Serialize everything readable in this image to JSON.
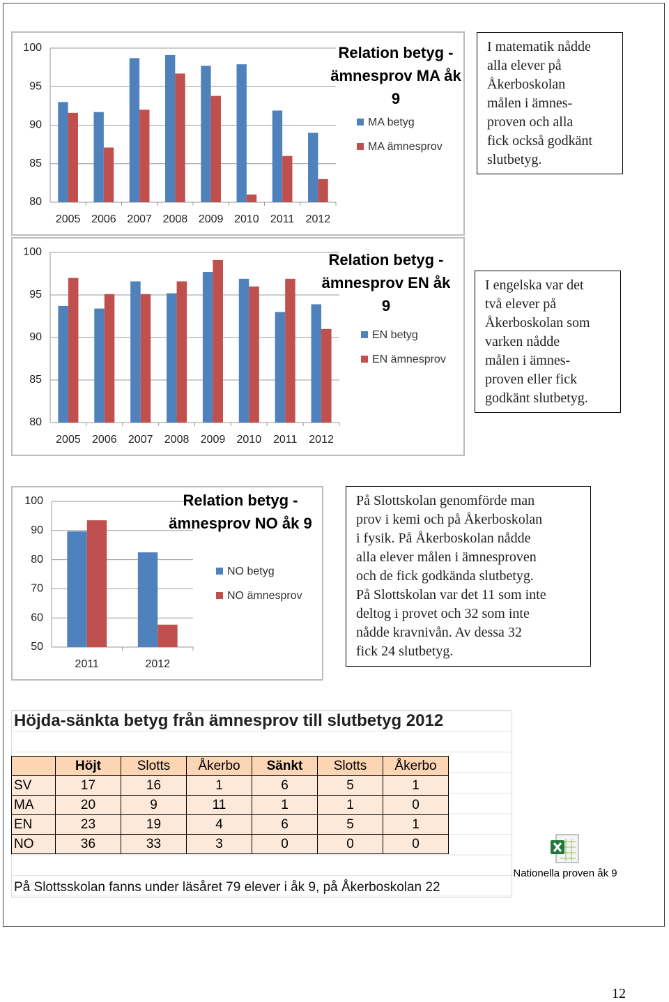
{
  "chart_data": [
    {
      "type": "bar",
      "title": "Relation betyg - ämnesprov MA åk 9",
      "categories": [
        "2005",
        "2006",
        "2007",
        "2008",
        "2009",
        "2010",
        "2011",
        "2012"
      ],
      "series": [
        {
          "name": "MA betyg",
          "color": "#4f81bd",
          "values": [
            93.0,
            91.7,
            98.7,
            99.1,
            97.7,
            97.9,
            91.9,
            89.0
          ]
        },
        {
          "name": "MA ämnesprov",
          "color": "#c0504d",
          "values": [
            91.6,
            87.1,
            92.0,
            96.7,
            93.8,
            81.0,
            86.0,
            83.0
          ]
        }
      ],
      "ylim": [
        80,
        100
      ],
      "yticks": [
        80,
        85,
        90,
        95,
        100
      ],
      "grid": true
    },
    {
      "type": "bar",
      "title": "Relation betyg - ämnesprov EN åk 9",
      "categories": [
        "2005",
        "2006",
        "2007",
        "2008",
        "2009",
        "2010",
        "2011",
        "2012"
      ],
      "series": [
        {
          "name": "EN betyg",
          "color": "#4f81bd",
          "values": [
            93.7,
            93.4,
            96.6,
            95.2,
            97.7,
            96.9,
            93.0,
            93.9
          ]
        },
        {
          "name": "EN ämnesprov",
          "color": "#c0504d",
          "values": [
            97.0,
            95.1,
            95.1,
            96.6,
            99.1,
            96.0,
            96.9,
            91.0
          ]
        }
      ],
      "ylim": [
        80,
        100
      ],
      "yticks": [
        80,
        85,
        90,
        95,
        100
      ],
      "grid": true
    },
    {
      "type": "bar",
      "title": "Relation betyg - ämnesprov NO åk 9",
      "categories": [
        "2011",
        "2012"
      ],
      "series": [
        {
          "name": "NO betyg",
          "color": "#4f81bd",
          "values": [
            89.7,
            82.5
          ]
        },
        {
          "name": "NO ämnesprov",
          "color": "#c0504d",
          "values": [
            93.5,
            57.7
          ]
        }
      ],
      "ylim": [
        50,
        100
      ],
      "yticks": [
        50,
        60,
        70,
        80,
        90,
        100
      ],
      "grid": true
    }
  ],
  "notes": [
    [
      "I matematik nådde",
      "alla elever på",
      "Åkerboskolan",
      "målen i ämnes-",
      "proven och alla",
      "fick också godkänt",
      "slutbetyg."
    ],
    [
      "I engelska var det",
      "två elever på",
      "Åkerboskolan som",
      "varken nådde",
      "målen i ämnes-",
      "proven eller fick",
      "godkänt slutbetyg."
    ],
    [
      "På Slottskolan genomförde man",
      "prov i kemi och på Åkerboskolan",
      "i fysik. På Åkerboskolan nådde",
      "alla elever målen i ämnesproven",
      "och de fick godkända slutbetyg.",
      "På Slottskolan var det 11 som inte",
      "deltog i provet och 32 som inte",
      "nådde kravnivån. Av dessa 32",
      "fick 24 slutbetyg."
    ]
  ],
  "table": {
    "title": "Höjda-sänkta betyg från ämnesprov till slutbetyg 2012",
    "header": [
      "Höjt",
      "Slotts",
      "Åkerbo",
      "Sänkt",
      "Slotts",
      "Åkerbo"
    ],
    "rows": [
      {
        "label": "SV",
        "values": [
          17,
          16,
          1,
          6,
          5,
          1
        ]
      },
      {
        "label": "MA",
        "values": [
          20,
          9,
          11,
          1,
          1,
          0
        ]
      },
      {
        "label": "EN",
        "values": [
          23,
          19,
          4,
          6,
          5,
          1
        ]
      },
      {
        "label": "NO",
        "values": [
          36,
          33,
          3,
          0,
          0,
          0
        ]
      }
    ],
    "footnote": "På Slottsskolan fanns under läsåret 79 elever i åk 9, på Åkerboskolan 22"
  },
  "attachment": "Nationella proven åk 9",
  "page_number": "12"
}
